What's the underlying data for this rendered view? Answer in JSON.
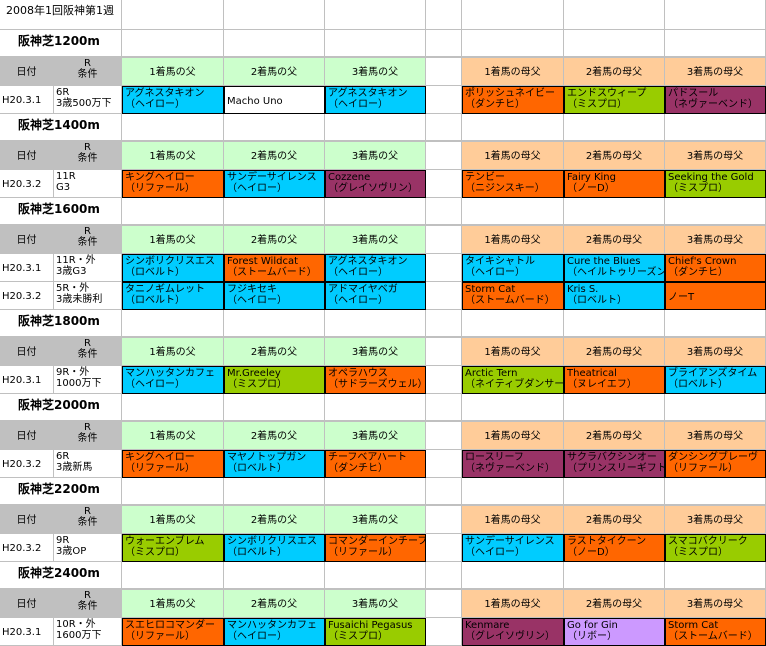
{
  "title": "2008年1回阪神第1週",
  "headers": {
    "date": "日付",
    "cond_top": "R",
    "cond_bottom": "条件",
    "sires": [
      "1着馬の父",
      "2着馬の父",
      "3着馬の父"
    ],
    "dams": [
      "1着馬の母父",
      "2着馬の母父",
      "3着馬の母父"
    ]
  },
  "colors": {
    "cyan": "#00ccff",
    "orange": "#ff6600",
    "green": "#99cc00",
    "purple": "#993366",
    "lavender": "#cc99ff",
    "white": "#ffffff"
  },
  "sections": [
    {
      "name": "阪神芝1200m",
      "races": [
        {
          "date": "H20.3.1",
          "cond": [
            "6R",
            "3歳500万下"
          ],
          "sires": [
            {
              "text": [
                "アグネスタキオン",
                "（ヘイロー）"
              ],
              "color": "cyan"
            },
            {
              "text": [
                "Macho Uno"
              ],
              "color": "white"
            },
            {
              "text": [
                "アグネスタキオン",
                "（ヘイロー）"
              ],
              "color": "cyan"
            }
          ],
          "dams": [
            {
              "text": [
                "ポリッシュネイビー",
                "（ダンチヒ）"
              ],
              "color": "orange"
            },
            {
              "text": [
                "エンドスウィープ",
                "（ミスプロ）"
              ],
              "color": "green"
            },
            {
              "text": [
                "パドスール",
                "（ネヴァーベンド）"
              ],
              "color": "purple"
            }
          ]
        }
      ]
    },
    {
      "name": "阪神芝1400m",
      "races": [
        {
          "date": "H20.3.2",
          "cond": [
            "11R",
            "G3"
          ],
          "sires": [
            {
              "text": [
                "キングヘイロー",
                "（リファール）"
              ],
              "color": "orange"
            },
            {
              "text": [
                "サンデーサイレンス",
                "（ヘイロー）"
              ],
              "color": "cyan"
            },
            {
              "text": [
                "Cozzene",
                "（グレイソヴリン）"
              ],
              "color": "purple"
            }
          ],
          "dams": [
            {
              "text": [
                "テンビー",
                "（ニジンスキー）"
              ],
              "color": "orange"
            },
            {
              "text": [
                "Fairy King",
                "（ノーD）"
              ],
              "color": "orange"
            },
            {
              "text": [
                "Seeking the Gold",
                "（ミスプロ）"
              ],
              "color": "green"
            }
          ]
        }
      ]
    },
    {
      "name": "阪神芝1600m",
      "races": [
        {
          "date": "H20.3.1",
          "cond": [
            "11R・外",
            "3歳G3"
          ],
          "sires": [
            {
              "text": [
                "シンボリクリスエス",
                "（ロベルト）"
              ],
              "color": "cyan"
            },
            {
              "text": [
                "Forest Wildcat",
                "（ストームバード）"
              ],
              "color": "orange"
            },
            {
              "text": [
                "アグネスタキオン",
                "（ヘイロー）"
              ],
              "color": "cyan"
            }
          ],
          "dams": [
            {
              "text": [
                "タイキシャトル",
                "（ヘイロー）"
              ],
              "color": "cyan"
            },
            {
              "text": [
                "Cure the Blues",
                "（ヘイルトゥリーズン）"
              ],
              "color": "cyan"
            },
            {
              "text": [
                "Chief's Crown",
                "（ダンチヒ）"
              ],
              "color": "orange"
            }
          ]
        },
        {
          "date": "H20.3.2",
          "cond": [
            "5R・外",
            "3歳未勝利"
          ],
          "sires": [
            {
              "text": [
                "タニノギムレット",
                "（ロベルト）"
              ],
              "color": "cyan"
            },
            {
              "text": [
                "フジキセキ",
                "（ヘイロー）"
              ],
              "color": "cyan"
            },
            {
              "text": [
                "アドマイヤベガ",
                "（ヘイロー）"
              ],
              "color": "cyan"
            }
          ],
          "dams": [
            {
              "text": [
                "Storm Cat",
                "（ストームバード）"
              ],
              "color": "orange"
            },
            {
              "text": [
                "Kris S.",
                "（ロベルト）"
              ],
              "color": "cyan"
            },
            {
              "text": [
                "ノーT"
              ],
              "color": "orange"
            }
          ]
        }
      ]
    },
    {
      "name": "阪神芝1800m",
      "races": [
        {
          "date": "H20.3.1",
          "cond": [
            "9R・外",
            "1000万下"
          ],
          "sires": [
            {
              "text": [
                "マンハッタンカフェ",
                "（ヘイロー）"
              ],
              "color": "cyan"
            },
            {
              "text": [
                "Mr.Greeley",
                "（ミスプロ）"
              ],
              "color": "green"
            },
            {
              "text": [
                "オペラハウス",
                "（サドラーズウェル）"
              ],
              "color": "orange"
            }
          ],
          "dams": [
            {
              "text": [
                "Arctic Tern",
                "（ネイティブダンサー）"
              ],
              "color": "green"
            },
            {
              "text": [
                "Theatrical",
                "（ヌレイエフ）"
              ],
              "color": "orange"
            },
            {
              "text": [
                "ブライアンズタイム",
                "（ロベルト）"
              ],
              "color": "cyan"
            }
          ]
        }
      ]
    },
    {
      "name": "阪神芝2000m",
      "races": [
        {
          "date": "H20.3.2",
          "cond": [
            "6R",
            "3歳新馬"
          ],
          "sires": [
            {
              "text": [
                "キングヘイロー",
                "（リファール）"
              ],
              "color": "orange"
            },
            {
              "text": [
                "マヤノトップガン",
                "（ロベルト）"
              ],
              "color": "cyan"
            },
            {
              "text": [
                "チーフベアハート",
                "（ダンチヒ）"
              ],
              "color": "orange"
            }
          ],
          "dams": [
            {
              "text": [
                "ロースリーフ",
                "（ネヴァーベンド）"
              ],
              "color": "purple"
            },
            {
              "text": [
                "サクラバクシンオー",
                "（プリンスリーギフト）"
              ],
              "color": "purple"
            },
            {
              "text": [
                "ダンシングブレーヴ",
                "（リファール）"
              ],
              "color": "orange"
            }
          ]
        }
      ]
    },
    {
      "name": "阪神芝2200m",
      "races": [
        {
          "date": "H20.3.2",
          "cond": [
            "9R",
            "3歳OP"
          ],
          "sires": [
            {
              "text": [
                "ウォーエンブレム",
                "（ミスプロ）"
              ],
              "color": "green"
            },
            {
              "text": [
                "シンボリクリスエス",
                "（ロベルト）"
              ],
              "color": "cyan"
            },
            {
              "text": [
                "コマンダーインチーフ",
                "（リファール）"
              ],
              "color": "orange"
            }
          ],
          "dams": [
            {
              "text": [
                "サンデーサイレンス",
                "（ヘイロー）"
              ],
              "color": "cyan"
            },
            {
              "text": [
                "ラストタイクーン",
                "（ノーD）"
              ],
              "color": "orange"
            },
            {
              "text": [
                "スマコバクリーク",
                "（ミスプロ）"
              ],
              "color": "green"
            }
          ]
        }
      ]
    },
    {
      "name": "阪神芝2400m",
      "races": [
        {
          "date": "H20.3.1",
          "cond": [
            "10R・外",
            "1600万下"
          ],
          "sires": [
            {
              "text": [
                "スエヒロコマンダー",
                "（リファール）"
              ],
              "color": "orange"
            },
            {
              "text": [
                "マンハッタンカフェ",
                "（ヘイロー）"
              ],
              "color": "cyan"
            },
            {
              "text": [
                "Fusaichi Pegasus",
                "（ミスプロ）"
              ],
              "color": "green"
            }
          ],
          "dams": [
            {
              "text": [
                "Kenmare",
                "（グレイソヴリン）"
              ],
              "color": "purple"
            },
            {
              "text": [
                "Go for Gin",
                "（リボー）"
              ],
              "color": "lavender"
            },
            {
              "text": [
                "Storm Cat",
                "（ストームバード）"
              ],
              "color": "orange"
            }
          ]
        }
      ]
    }
  ]
}
